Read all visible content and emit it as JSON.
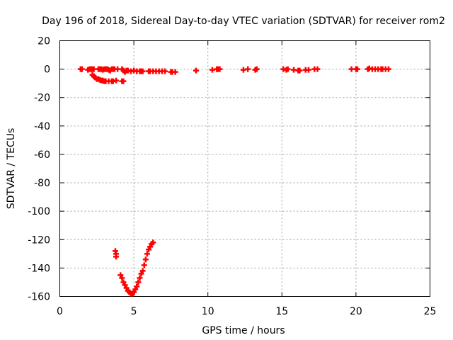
{
  "chart_data": {
    "type": "scatter",
    "title": "Day 196 of 2018, Sidereal Day-to-day VTEC variation (SDTVAR) for receiver rom2",
    "xlabel": "GPS time / hours",
    "ylabel": "SDTVAR / TECUs",
    "xlim": [
      0,
      25
    ],
    "ylim": [
      -160,
      20
    ],
    "xticks": [
      0,
      5,
      10,
      15,
      20,
      25
    ],
    "yticks": [
      20,
      0,
      -20,
      -40,
      -60,
      -80,
      -100,
      -120,
      -140,
      -160
    ],
    "grid": true,
    "marker": "+",
    "color": "#ff0000",
    "series": [
      {
        "name": "SDTVAR",
        "x": [
          1.4,
          1.5,
          1.9,
          2.0,
          2.1,
          2.2,
          2.3,
          2.2,
          2.3,
          2.4,
          2.5,
          2.6,
          2.7,
          2.8,
          2.9,
          3.0,
          3.1,
          3.2,
          3.3,
          3.4,
          3.5,
          3.6,
          3.7,
          3.9,
          4.2,
          4.3,
          4.4,
          4.5,
          4.6,
          4.8,
          5.0,
          5.2,
          5.4,
          5.5,
          5.6,
          6.0,
          6.1,
          6.3,
          6.5,
          6.7,
          6.9,
          7.1,
          7.5,
          7.6,
          7.8,
          9.2,
          10.3,
          10.6,
          10.7,
          10.8,
          12.4,
          12.7,
          13.2,
          13.3,
          15.1,
          15.3,
          15.4,
          15.8,
          16.1,
          16.2,
          16.6,
          16.8,
          17.2,
          17.4,
          19.7,
          20.0,
          20.1,
          20.8,
          20.9,
          21.1,
          21.3,
          21.5,
          21.7,
          21.8,
          22.0,
          22.2,
          2.6,
          2.7,
          2.8,
          2.9,
          3.0,
          3.1,
          3.3,
          3.5,
          3.6,
          3.8,
          4.2,
          4.3,
          3.75,
          3.8,
          3.8,
          4.1,
          4.2,
          4.3,
          4.4,
          4.5,
          4.6,
          4.7,
          4.8,
          4.9,
          5.0,
          5.1,
          5.2,
          5.3,
          5.4,
          5.5,
          5.6,
          5.7,
          5.8,
          5.9,
          6.0,
          6.1,
          6.2,
          6.3
        ],
        "y": [
          0,
          0,
          -0.5,
          0,
          0,
          0,
          0,
          -4,
          -5,
          -6,
          -7,
          0,
          0,
          0,
          -0.5,
          0,
          0,
          0,
          -0.5,
          -1,
          0,
          0,
          0,
          0,
          0,
          -1,
          -2,
          -1,
          -1,
          -1.5,
          -1,
          -1.5,
          -1.5,
          -1.5,
          -1.5,
          -1.5,
          -1.5,
          -1.5,
          -1.5,
          -1.5,
          -1.5,
          -1.5,
          -2,
          -2,
          -2,
          -1,
          -0.5,
          0,
          0,
          0,
          -0.5,
          0,
          -0.5,
          0,
          0,
          -0.5,
          0,
          -0.5,
          -1,
          -1,
          -0.5,
          -0.5,
          0,
          0,
          0,
          0,
          0,
          0,
          0.5,
          0,
          0,
          0,
          0,
          0,
          0,
          0,
          -7,
          -7.5,
          -8,
          -8,
          -8.5,
          -8.5,
          -8.5,
          -8.5,
          -8.5,
          -8,
          -8.5,
          -8.5,
          -128,
          -130,
          -132,
          -145,
          -147,
          -150,
          -152,
          -154,
          -156,
          -157,
          -158,
          -158,
          -157,
          -155,
          -153,
          -150,
          -147,
          -144,
          -142,
          -138,
          -134,
          -130,
          -127,
          -125,
          -123,
          -122
        ]
      }
    ]
  }
}
